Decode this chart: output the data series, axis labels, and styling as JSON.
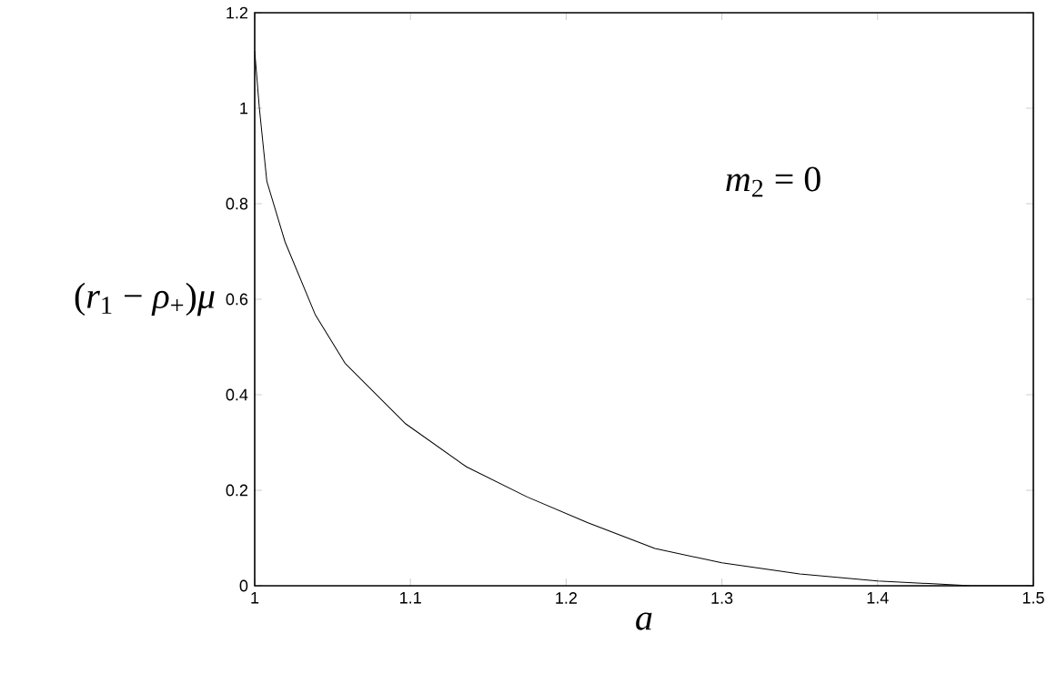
{
  "chart_data": {
    "type": "line",
    "xlabel": "*a*",
    "ylabel": "(*r*$_{1}$ − *ρ*$_{+}$)*μ*",
    "annotations": [
      "*m*$_{2}$ = 0"
    ],
    "x": [
      1.0,
      1.003,
      1.0078,
      1.0195,
      1.039,
      1.058,
      1.097,
      1.136,
      1.175,
      1.214,
      1.257,
      1.3,
      1.35,
      1.4,
      1.46,
      1.5
    ],
    "series": [
      {
        "color": "#000000",
        "values": [
          1.12,
          1.0,
          0.847,
          0.72,
          0.567,
          0.466,
          0.339,
          0.249,
          0.186,
          0.132,
          0.078,
          0.048,
          0.025,
          0.01,
          0.0,
          0.0
        ]
      }
    ],
    "xlim": [
      1,
      1.5
    ],
    "ylim": [
      0,
      1.2
    ],
    "xticks": [
      1,
      1.1,
      1.2,
      1.3,
      1.4,
      1.5
    ],
    "yticks": [
      0,
      0.2,
      0.4,
      0.6,
      0.8,
      1,
      1.2
    ],
    "grid": false,
    "marker": "none",
    "line_style": "solid"
  }
}
